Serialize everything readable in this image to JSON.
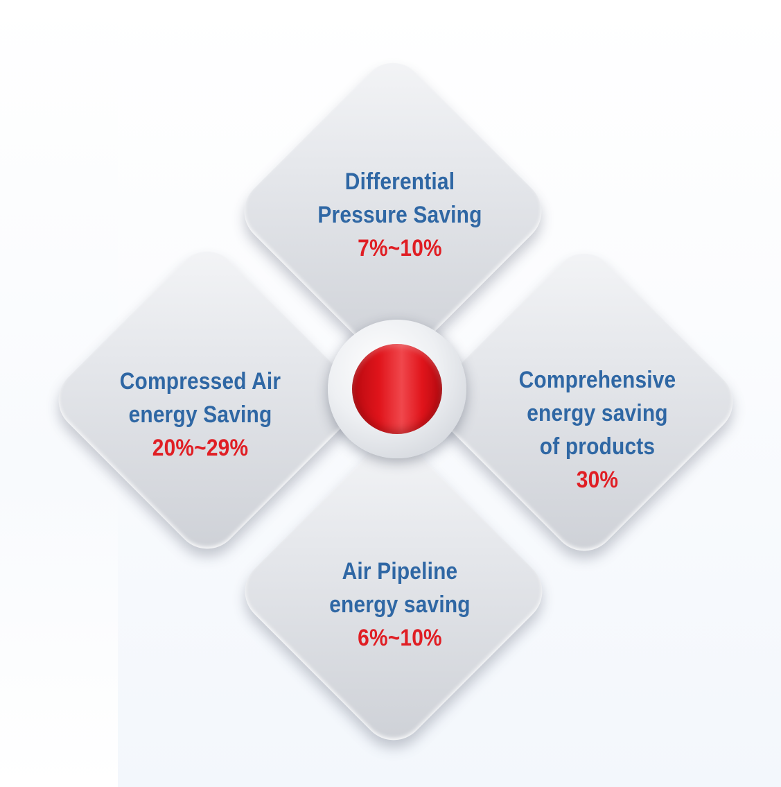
{
  "segments": {
    "top": {
      "title_line1": "Differential",
      "title_line2": "Pressure Saving",
      "value": "7%~10%"
    },
    "left": {
      "title_line1": "Compressed Air",
      "title_line2": "energy Saving",
      "value": "20%~29%"
    },
    "right": {
      "title_line1": "Comprehensive",
      "title_line2": "energy saving",
      "title_line3": "of products",
      "value": "30%"
    },
    "bottom": {
      "title_line1": "Air Pipeline",
      "title_line2": "energy saving",
      "value": "6%~10%"
    }
  },
  "colors": {
    "title": "#2f67a4",
    "value": "#e01e24",
    "hub": "#e0141b",
    "panel": "#dfe1e5"
  }
}
